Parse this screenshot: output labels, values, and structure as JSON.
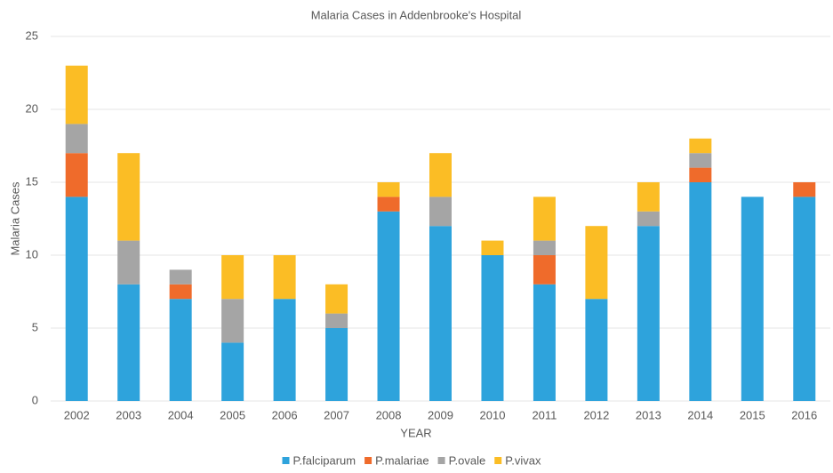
{
  "chart_data": {
    "type": "stacked_bar",
    "title": "Malaria Cases in Addenbrooke's Hospital",
    "xlabel": "YEAR",
    "ylabel": "Malaria Cases",
    "categories": [
      "2002",
      "2003",
      "2004",
      "2005",
      "2006",
      "2007",
      "2008",
      "2009",
      "2010",
      "2011",
      "2012",
      "2013",
      "2014",
      "2015",
      "2016"
    ],
    "series": [
      {
        "name": "P.falciparum",
        "color": "#2ea3dc",
        "values": [
          14,
          8,
          7,
          4,
          7,
          5,
          13,
          12,
          10,
          8,
          7,
          12,
          15,
          14,
          14
        ]
      },
      {
        "name": "P.malariae",
        "color": "#ef6b2b",
        "values": [
          3,
          0,
          1,
          0,
          0,
          0,
          1,
          0,
          0,
          2,
          0,
          0,
          1,
          0,
          1
        ]
      },
      {
        "name": "P.ovale",
        "color": "#a5a5a5",
        "values": [
          2,
          3,
          1,
          3,
          0,
          1,
          0,
          2,
          0,
          1,
          0,
          1,
          1,
          0,
          0
        ]
      },
      {
        "name": "P.vivax",
        "color": "#fbbd25",
        "values": [
          4,
          6,
          0,
          3,
          3,
          2,
          1,
          3,
          1,
          3,
          5,
          2,
          1,
          0,
          0
        ]
      }
    ],
    "ylim": [
      0,
      25
    ],
    "yticks": [
      0,
      5,
      10,
      15,
      20,
      25
    ],
    "grid": true,
    "legend": "bottom"
  }
}
